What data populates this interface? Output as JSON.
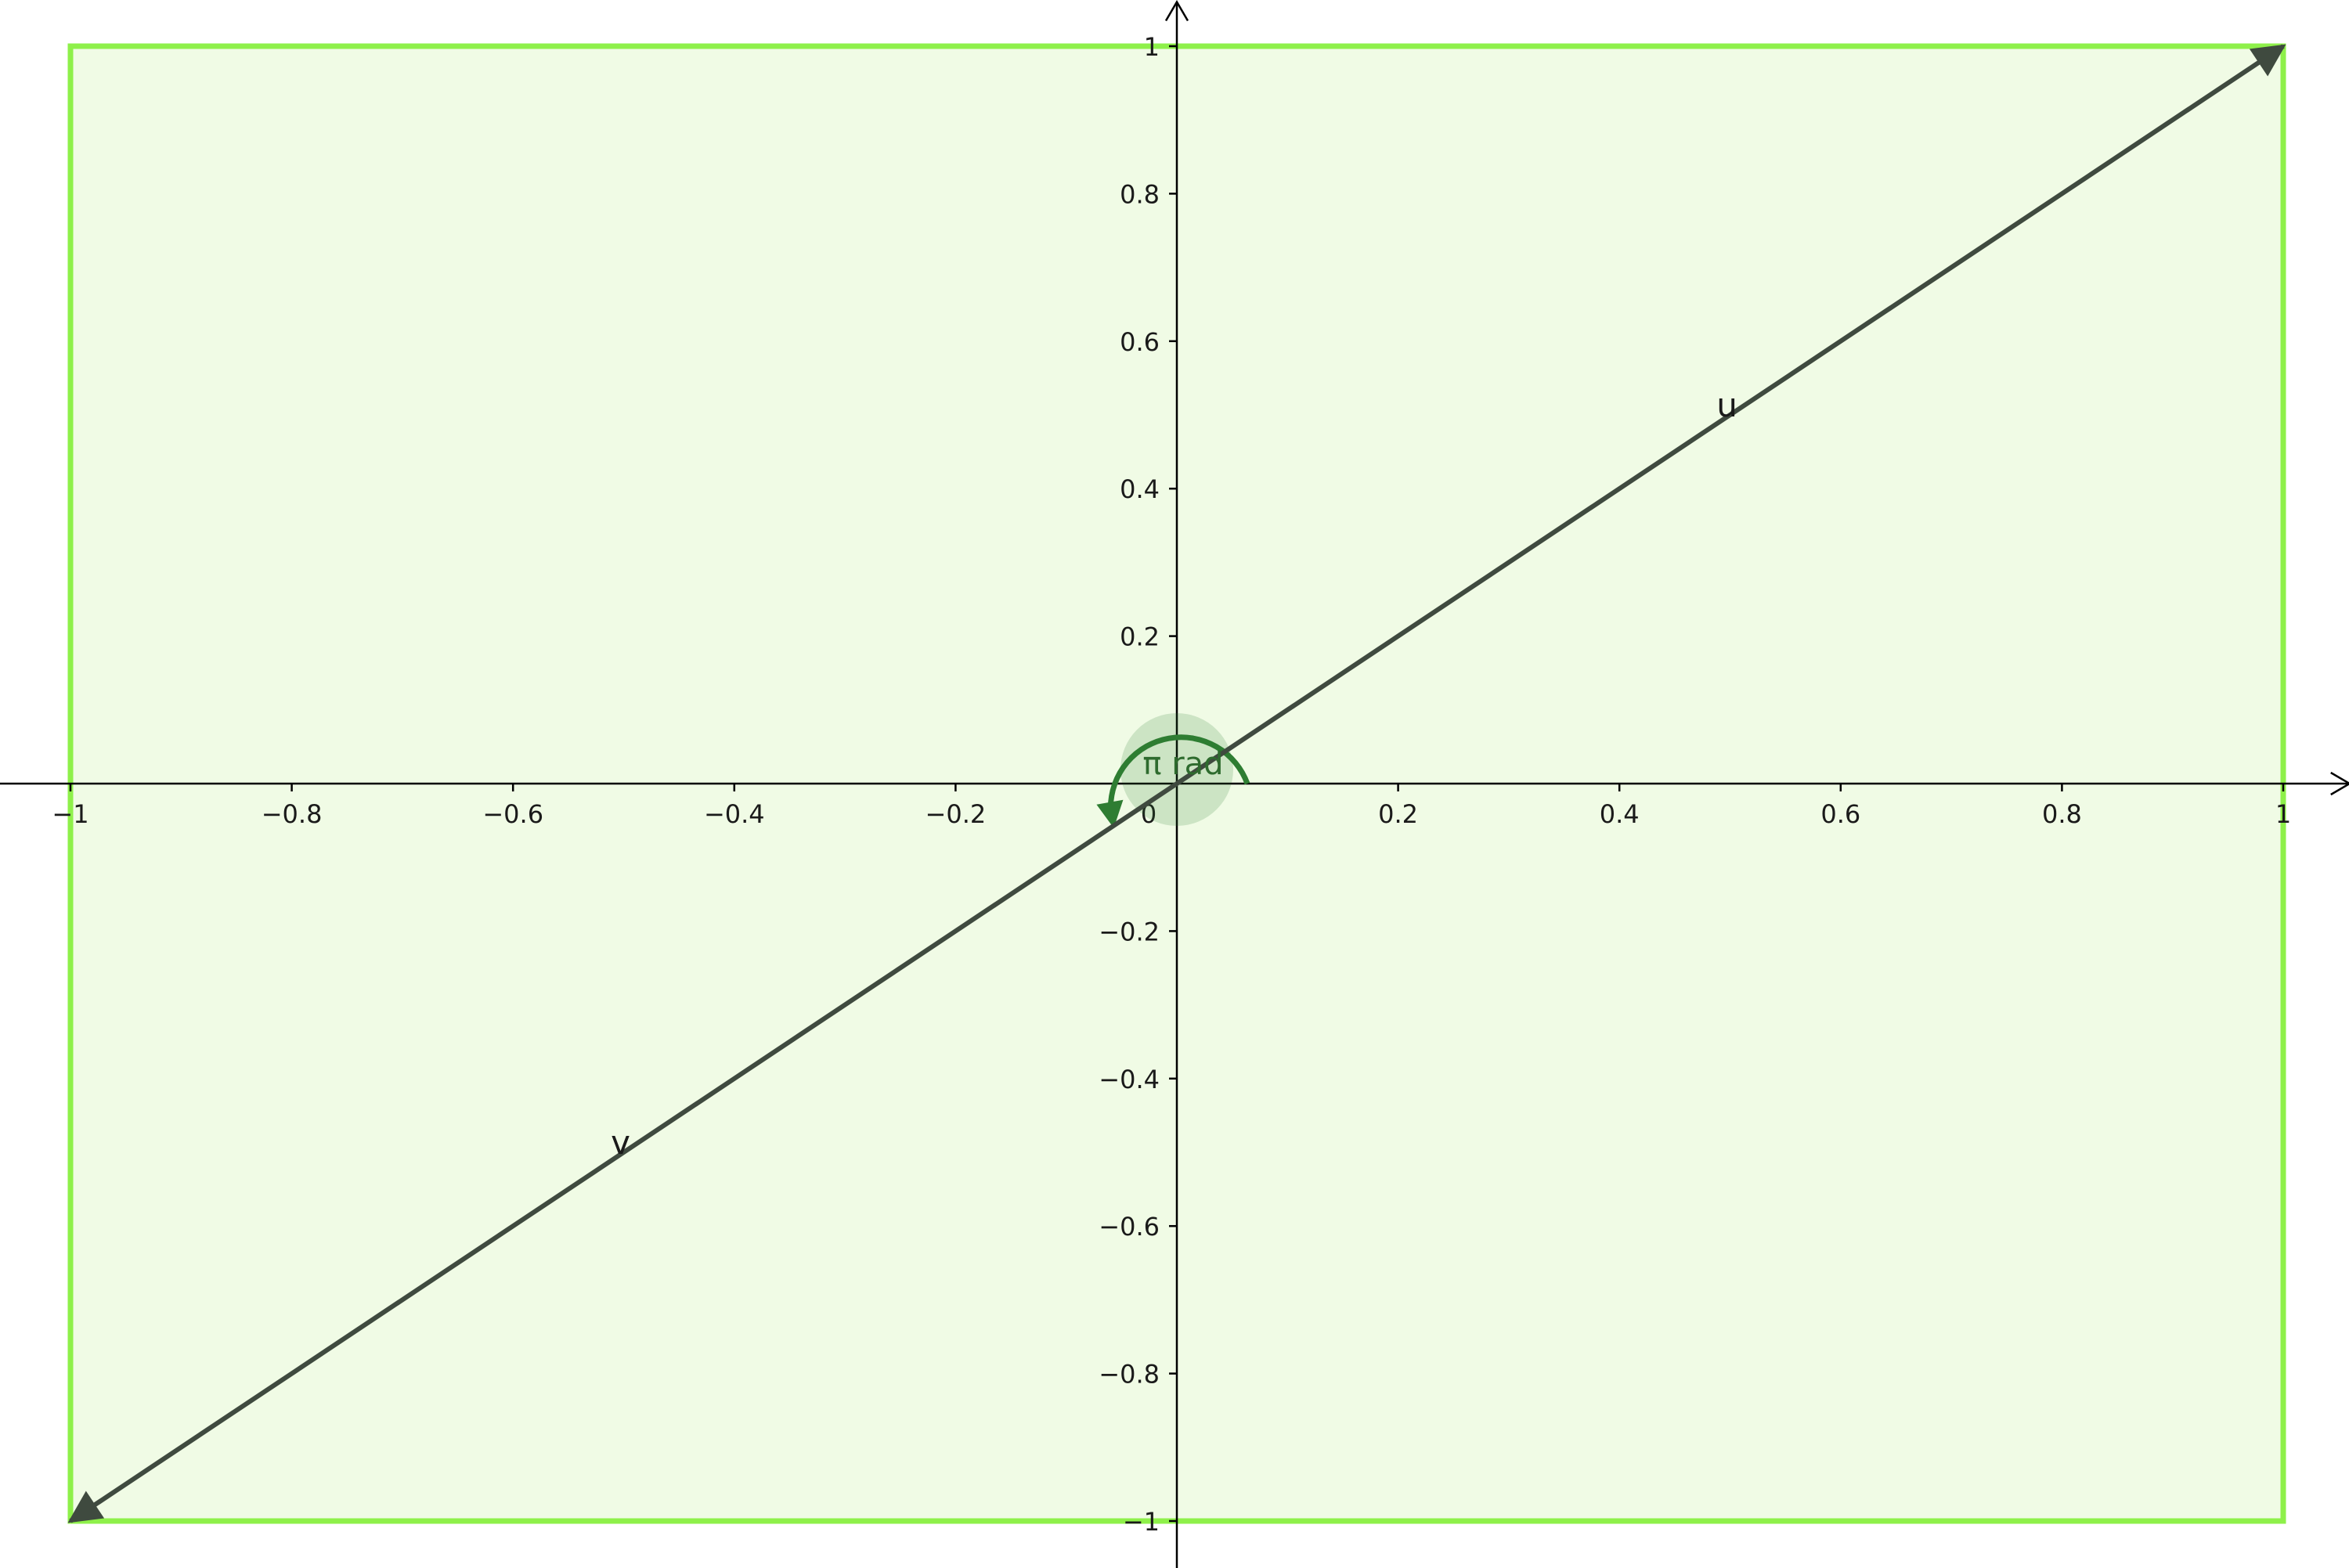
{
  "graph": {
    "x_axis": {
      "range": [
        -1.06,
        1.06
      ],
      "ticks": [
        {
          "value": -1,
          "label": "−1"
        },
        {
          "value": -0.8,
          "label": "−0.8"
        },
        {
          "value": -0.6,
          "label": "−0.6"
        },
        {
          "value": -0.4,
          "label": "−0.4"
        },
        {
          "value": -0.2,
          "label": "−0.2"
        },
        {
          "value": 0.2,
          "label": "0.2"
        },
        {
          "value": 0.4,
          "label": "0.4"
        },
        {
          "value": 0.6,
          "label": "0.6"
        },
        {
          "value": 0.8,
          "label": "0.8"
        },
        {
          "value": 1,
          "label": "1"
        }
      ]
    },
    "y_axis": {
      "range": [
        -1.06,
        1.06
      ],
      "ticks": [
        {
          "value": 1,
          "label": "1"
        },
        {
          "value": 0.8,
          "label": "0.8"
        },
        {
          "value": 0.6,
          "label": "0.6"
        },
        {
          "value": 0.4,
          "label": "0.4"
        },
        {
          "value": 0.2,
          "label": "0.2"
        },
        {
          "value": -0.2,
          "label": "−0.2"
        },
        {
          "value": -0.4,
          "label": "−0.4"
        },
        {
          "value": -0.6,
          "label": "−0.6"
        },
        {
          "value": -0.8,
          "label": "−0.8"
        },
        {
          "value": -1,
          "label": "−1"
        }
      ]
    },
    "origin_label": "0",
    "region": {
      "x_min": -1,
      "x_max": 1,
      "y_min": -1,
      "y_max": 1,
      "fill_color": "#f0fbe5",
      "stroke_color": "#8ef04a"
    },
    "vectors": [
      {
        "name": "u",
        "label": "u",
        "from": [
          0,
          0
        ],
        "to": [
          1,
          1
        ],
        "label_at": [
          0.5,
          0.5
        ],
        "color": "#3f4a3f"
      },
      {
        "name": "v",
        "label": "v",
        "from": [
          0,
          0
        ],
        "to": [
          -1,
          -1
        ],
        "label_at": [
          -0.5,
          -0.5
        ],
        "color": "#3f4a3f"
      }
    ],
    "angle": {
      "label": "π rad",
      "value_rad": 3.14159,
      "color": "#2e7d32"
    }
  }
}
